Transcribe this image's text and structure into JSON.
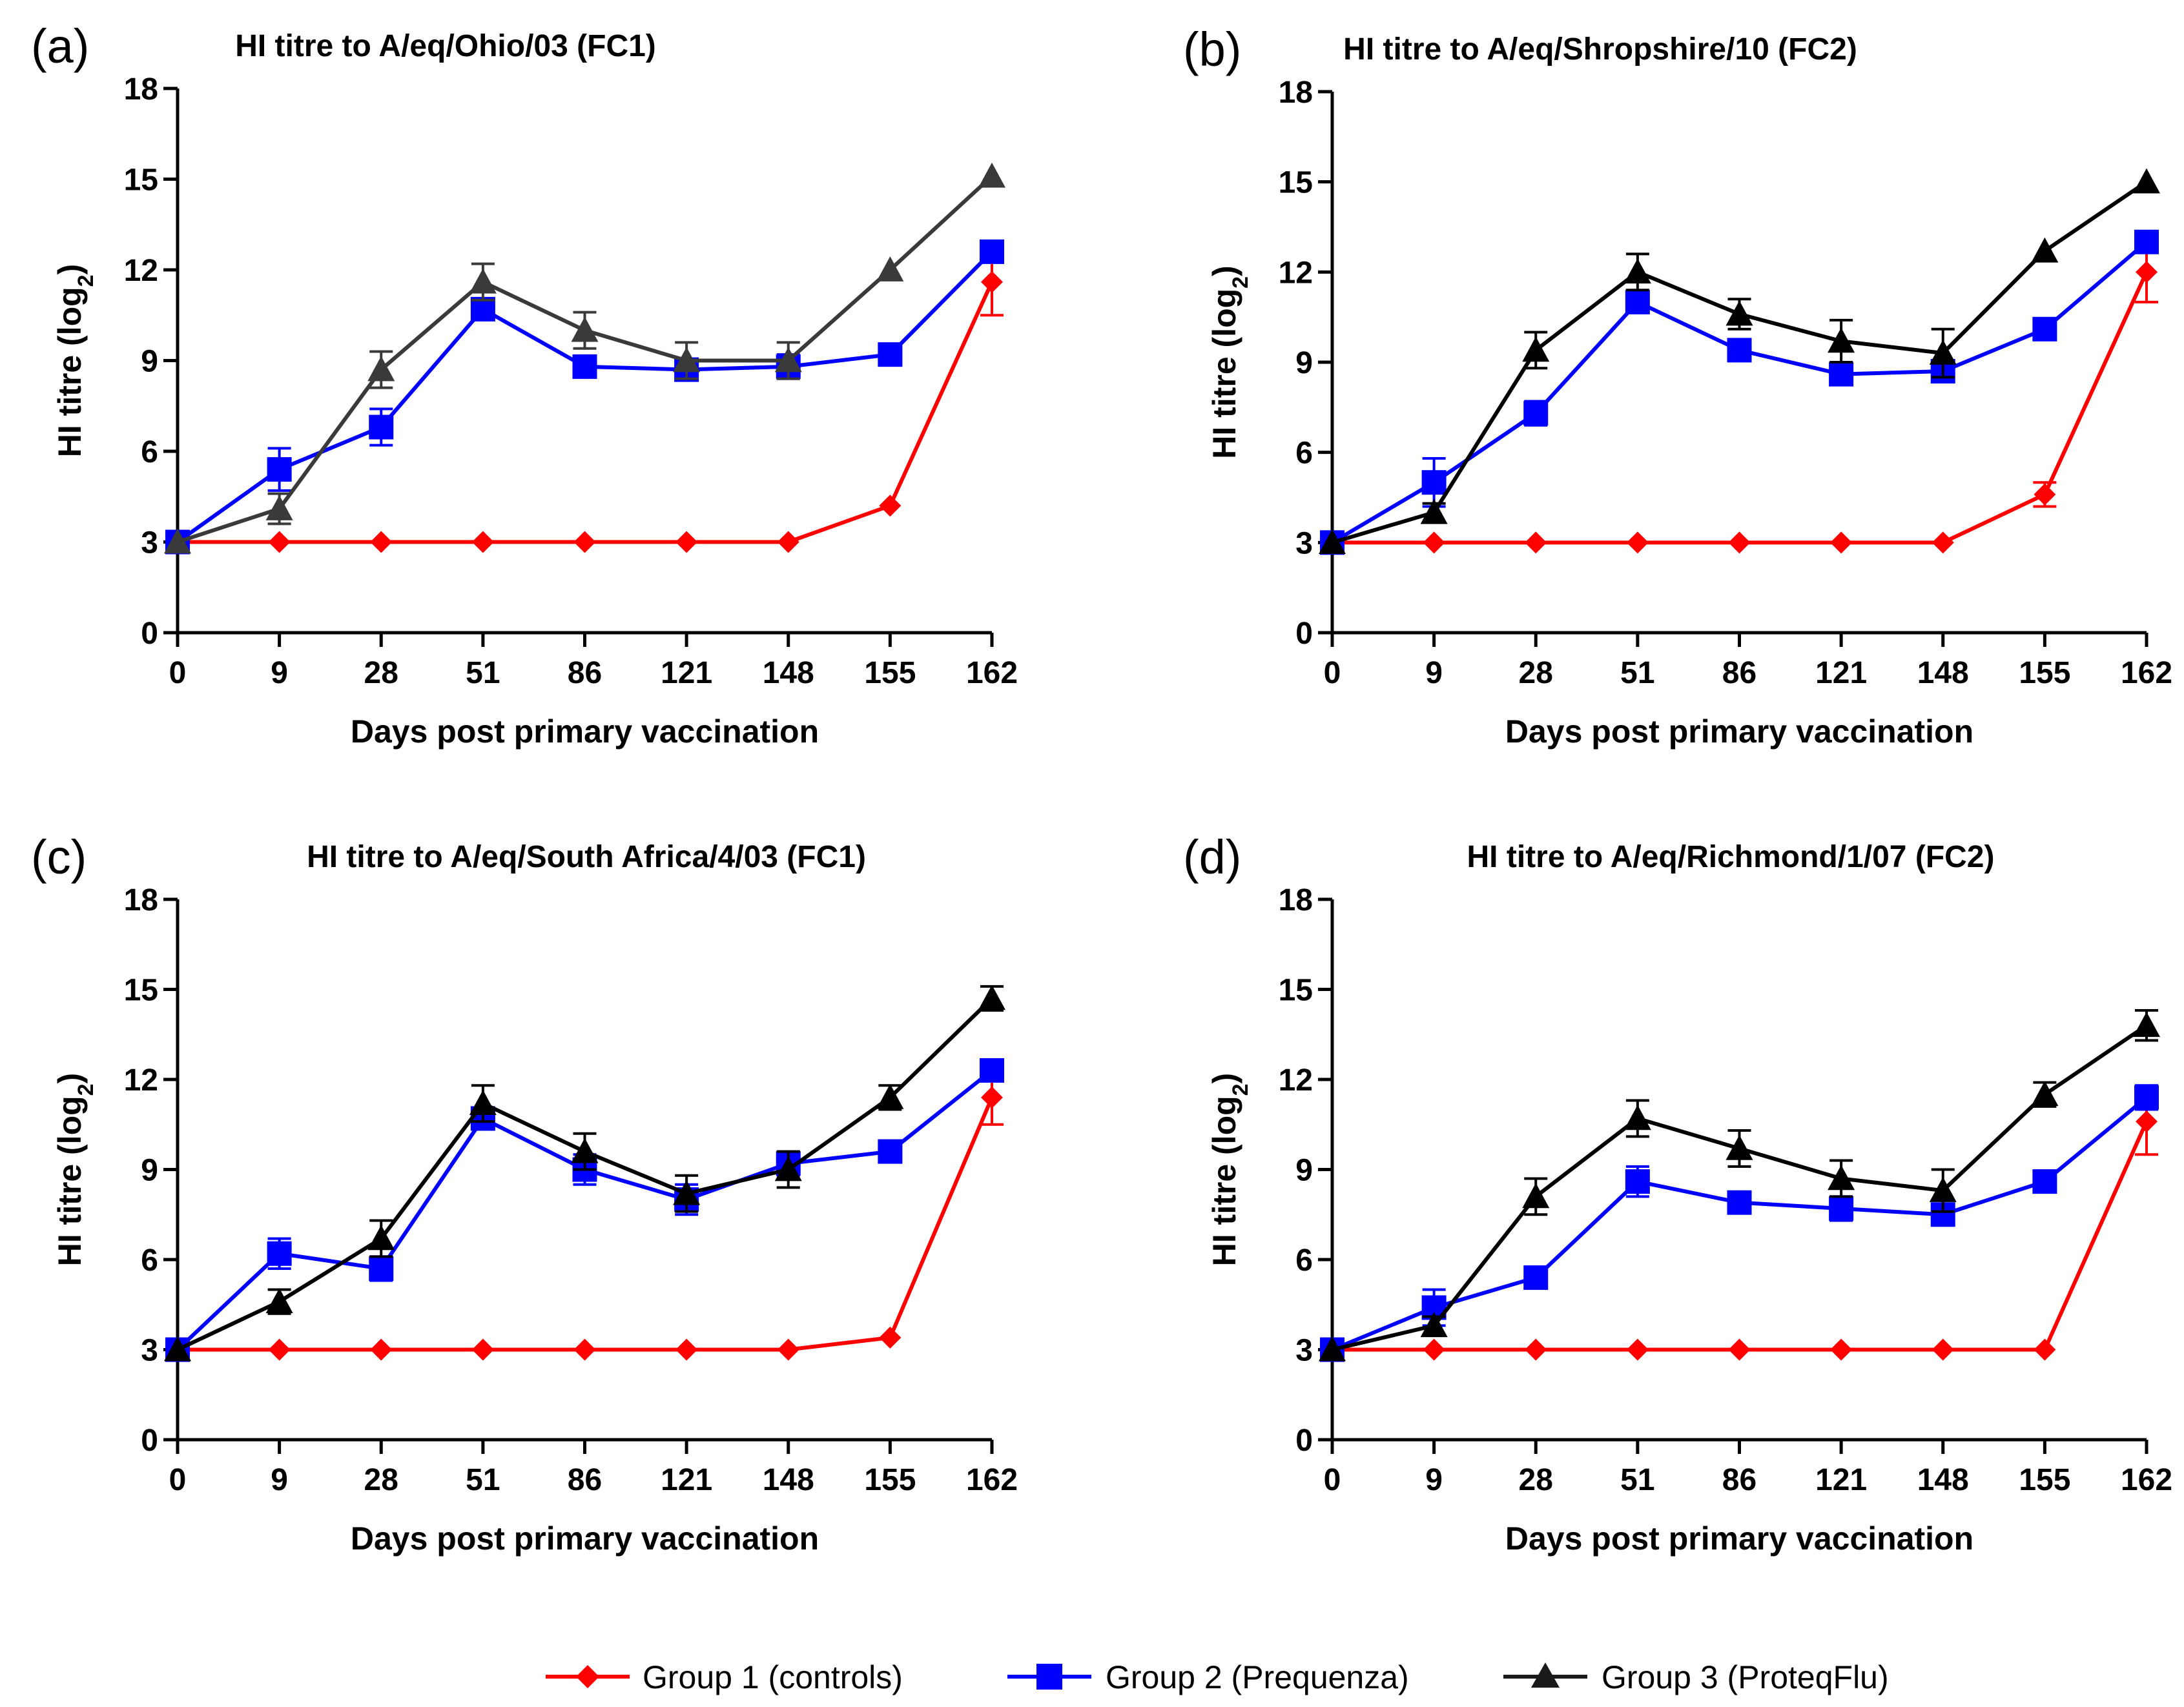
{
  "legend": [
    {
      "label": "Group 1 (controls)",
      "color": "#ff0000",
      "marker": "diamond"
    },
    {
      "label": "Group 2 (Prequenza)",
      "color": "#0000ff",
      "marker": "square"
    },
    {
      "label": "Group 3 (ProteqFlu)",
      "color": "#1a1a1a",
      "marker": "triangle"
    }
  ],
  "chart_data": [
    {
      "panel": "(a)",
      "type": "line",
      "title": "HI titre to A/eq/Ohio/03 (FC1)",
      "xlabel": "Days post primary vaccination",
      "ylabel": "HI titre (log2)",
      "ylabel_main": "HI titre (log",
      "ylabel_sub": "2",
      "ylabel_close": ")",
      "ylim": [
        0,
        18
      ],
      "yticks": [
        "0",
        "3",
        "6",
        "9",
        "12",
        "15",
        "18"
      ],
      "categories": [
        "0",
        "9",
        "28",
        "51",
        "86",
        "121",
        "148",
        "155",
        "162"
      ],
      "series": [
        {
          "name": "Group 1 (controls)",
          "color": "#ff0000",
          "marker": "diamond",
          "values": [
            3,
            3,
            3,
            3,
            3,
            3,
            3,
            4.2,
            11.6
          ],
          "err": [
            0,
            0,
            0,
            0,
            0,
            0,
            0,
            0,
            1.1
          ]
        },
        {
          "name": "Group 2 (Prequenza)",
          "color": "#0000ff",
          "marker": "square",
          "values": [
            3,
            5.4,
            6.8,
            10.7,
            8.8,
            8.7,
            8.8,
            9.2,
            12.6
          ],
          "err": [
            0,
            0.7,
            0.6,
            0.3,
            0.3,
            0.2,
            0.4,
            0.2,
            0.2
          ]
        },
        {
          "name": "Group 3 (ProteqFlu)",
          "color": "#3a3a3a",
          "marker": "triangle",
          "values": [
            3,
            4.1,
            8.7,
            11.6,
            10.0,
            9.0,
            9.0,
            12.0,
            15.1
          ],
          "err": [
            0,
            0.5,
            0.6,
            0.6,
            0.6,
            0.6,
            0.6,
            0,
            0
          ]
        }
      ]
    },
    {
      "panel": "(b)",
      "type": "line",
      "title": "HI titre to A/eq/Shropshire/10 (FC2)",
      "xlabel": "Days post primary vaccination",
      "ylabel": "HI titre (log2)",
      "ylabel_main": "HI titre (log",
      "ylabel_sub": "2",
      "ylabel_close": ")",
      "ylim": [
        0,
        18
      ],
      "yticks": [
        "0",
        "3",
        "6",
        "9",
        "12",
        "15",
        "18"
      ],
      "categories": [
        "0",
        "9",
        "28",
        "51",
        "86",
        "121",
        "148",
        "155",
        "162"
      ],
      "series": [
        {
          "name": "Group 1 (controls)",
          "color": "#ff0000",
          "marker": "diamond",
          "values": [
            3,
            3,
            3,
            3,
            3,
            3,
            3,
            4.6,
            12.0
          ],
          "err": [
            0,
            0,
            0,
            0,
            0,
            0,
            0,
            0.4,
            1.0
          ]
        },
        {
          "name": "Group 2 (Prequenza)",
          "color": "#0000ff",
          "marker": "square",
          "values": [
            3,
            5.0,
            7.3,
            11.0,
            9.4,
            8.6,
            8.7,
            10.1,
            13.0
          ],
          "err": [
            0,
            0.8,
            0.4,
            0.3,
            0.3,
            0.3,
            0.3,
            0.2,
            0.2
          ]
        },
        {
          "name": "Group 3 (ProteqFlu)",
          "color": "#000000",
          "marker": "triangle",
          "values": [
            3,
            4.0,
            9.4,
            12.0,
            10.6,
            9.7,
            9.3,
            12.7,
            15.0
          ],
          "err": [
            0,
            0.3,
            0.6,
            0.6,
            0.5,
            0.7,
            0.8,
            0,
            0
          ]
        }
      ]
    },
    {
      "panel": "(c)",
      "type": "line",
      "title": "HI titre to A/eq/South Africa/4/03 (FC1)",
      "xlabel": "Days post primary vaccination",
      "ylabel": "HI titre (log2)",
      "ylabel_main": "HI titre (log",
      "ylabel_sub": "2",
      "ylabel_close": ")",
      "ylim": [
        0,
        18
      ],
      "yticks": [
        "0",
        "3",
        "6",
        "9",
        "12",
        "15",
        "18"
      ],
      "categories": [
        "0",
        "9",
        "28",
        "51",
        "86",
        "121",
        "148",
        "155",
        "162"
      ],
      "series": [
        {
          "name": "Group 1 (controls)",
          "color": "#ff0000",
          "marker": "diamond",
          "values": [
            3,
            3,
            3,
            3,
            3,
            3,
            3,
            3.4,
            11.4
          ],
          "err": [
            0,
            0,
            0,
            0,
            0,
            0,
            0,
            0,
            0.9
          ]
        },
        {
          "name": "Group 2 (Prequenza)",
          "color": "#0000ff",
          "marker": "square",
          "values": [
            3,
            6.2,
            5.7,
            10.7,
            9.0,
            8.0,
            9.2,
            9.6,
            12.3
          ],
          "err": [
            0,
            0.5,
            0.4,
            0.3,
            0.5,
            0.5,
            0.4,
            0.2,
            0.2
          ]
        },
        {
          "name": "Group 3 (ProteqFlu)",
          "color": "#000000",
          "marker": "triangle",
          "values": [
            3,
            4.6,
            6.7,
            11.2,
            9.6,
            8.2,
            9.0,
            11.4,
            14.7
          ],
          "err": [
            0,
            0.4,
            0.6,
            0.6,
            0.6,
            0.6,
            0.6,
            0.4,
            0.4
          ]
        }
      ]
    },
    {
      "panel": "(d)",
      "type": "line",
      "title": "HI titre to A/eq/Richmond/1/07 (FC2)",
      "xlabel": "Days post primary vaccination",
      "ylabel": "HI titre (log2)",
      "ylabel_main": "HI titre (log",
      "ylabel_sub": "2",
      "ylabel_close": ")",
      "ylim": [
        0,
        18
      ],
      "yticks": [
        "0",
        "3",
        "6",
        "9",
        "12",
        "15",
        "18"
      ],
      "categories": [
        "0",
        "9",
        "28",
        "51",
        "86",
        "121",
        "148",
        "155",
        "162"
      ],
      "series": [
        {
          "name": "Group 1 (controls)",
          "color": "#ff0000",
          "marker": "diamond",
          "values": [
            3,
            3,
            3,
            3,
            3,
            3,
            3,
            3,
            10.6
          ],
          "err": [
            0,
            0,
            0,
            0,
            0,
            0,
            0,
            0,
            1.1
          ]
        },
        {
          "name": "Group 2 (Prequenza)",
          "color": "#0000ff",
          "marker": "square",
          "values": [
            3,
            4.4,
            5.4,
            8.6,
            7.9,
            7.7,
            7.5,
            8.6,
            11.4
          ],
          "err": [
            0,
            0.6,
            0.3,
            0.5,
            0.3,
            0.4,
            0.3,
            0.2,
            0.4
          ]
        },
        {
          "name": "Group 3 (ProteqFlu)",
          "color": "#000000",
          "marker": "triangle",
          "values": [
            3,
            3.8,
            8.1,
            10.7,
            9.7,
            8.7,
            8.3,
            11.5,
            13.8
          ],
          "err": [
            0,
            0.3,
            0.6,
            0.6,
            0.6,
            0.6,
            0.7,
            0.4,
            0.5
          ]
        }
      ]
    }
  ]
}
